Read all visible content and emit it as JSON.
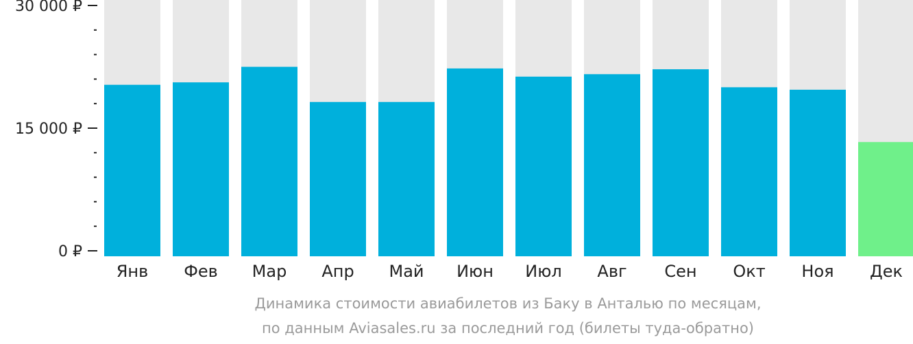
{
  "chart_data": {
    "type": "bar",
    "currency": "₽",
    "categories": [
      "Янв",
      "Фев",
      "Мар",
      "Апр",
      "Май",
      "Июн",
      "Июл",
      "Авг",
      "Сен",
      "Окт",
      "Ноя",
      "Дек"
    ],
    "values": [
      20300,
      20600,
      22500,
      18200,
      18200,
      22300,
      21300,
      21600,
      22200,
      20000,
      19700,
      13300
    ],
    "highlight_index": 11,
    "ylim": [
      0,
      30000
    ],
    "yticks": [
      {
        "value": 0,
        "label": "0 ₽"
      },
      {
        "value": 15000,
        "label": "15 000 ₽"
      },
      {
        "value": 30000,
        "label": "30 000 ₽"
      }
    ],
    "minor_tick_step": 3000,
    "colors": {
      "bar": "#00b0dc",
      "bar_highlight": "#6ff08a",
      "bar_background": "#e8e8e8",
      "axis": "#222222",
      "caption": "#9a9a9a"
    }
  },
  "caption": {
    "line1": "Динамика стоимости авиабилетов из Баку в Анталью по месяцам,",
    "line2": "по данным Aviasales.ru за последний год (билеты туда-обратно)"
  }
}
